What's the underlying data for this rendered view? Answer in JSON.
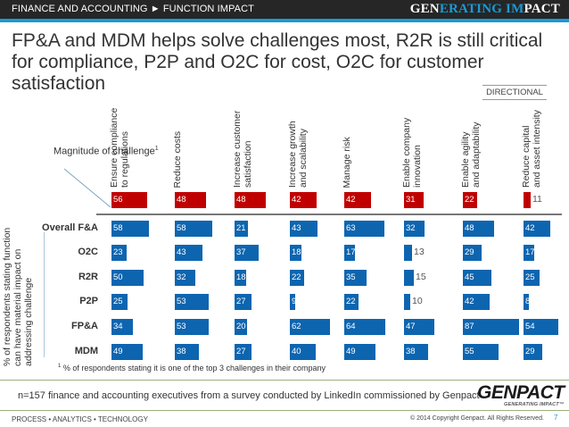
{
  "header": {
    "breadcrumb": "FINANCE AND ACCOUNTING ► FUNCTION IMPACT",
    "brand_part1": "GEN",
    "brand_part2": "ERATING IM",
    "brand_part3": "PACT"
  },
  "title": "FP&A and MDM helps solve challenges most, R2R is still critical for compliance, P2P and O2C for cost, O2C for customer satisfaction",
  "directional_label": "DIRECTIONAL",
  "magnitude_label": "Magnitude of challenge",
  "magnitude_sup": "1",
  "ylabel": "% of respondents stating function can have material impact on addressing challenge",
  "footnote_sup": "1",
  "footnote": "% of respondents stating it is one of the top 3 challenges in their company",
  "sample_note": "n=157 finance and accounting executives from a survey conducted by LinkedIn commissioned by Genpact",
  "footer": {
    "logo": "GENPACT",
    "logo_sub": "GENERATING IMPACT™",
    "tagline": "PROCESS • ANALYTICS • TECHNOLOGY",
    "copyright": "© 2014 Copyright Genpact. All Rights Reserved.",
    "page": "7"
  },
  "colors": {
    "magnitude": "#c00000",
    "impact": "#0d65b0",
    "accent": "#1a9ad6"
  },
  "chart_data": {
    "type": "table",
    "title": "FP&A and MDM helps solve challenges most, R2R is still critical for compliance, P2P and O2C for cost, O2C for customer satisfaction",
    "categories": [
      "Ensure compliance to regulations",
      "Reduce costs",
      "Increase customer satisfaction",
      "Increase growth and scalability",
      "Manage risk",
      "Enable company innovation",
      "Enable agility and adaptability",
      "Reduce capital and asset intensity"
    ],
    "categories_display": [
      [
        "Ensure compliance",
        "to regulations"
      ],
      [
        "Reduce costs"
      ],
      [
        "Increase customer",
        "satisfaction"
      ],
      [
        "Increase growth",
        "and scalability"
      ],
      [
        "Manage risk"
      ],
      [
        "Enable company",
        "innovation"
      ],
      [
        "Enable agility",
        "and adaptability"
      ],
      [
        "Reduce capital",
        "and asset intensity"
      ]
    ],
    "magnitude": {
      "name": "Magnitude of challenge",
      "values": [
        56,
        48,
        48,
        42,
        42,
        31,
        22,
        11
      ]
    },
    "series": [
      {
        "name": "Overall F&A",
        "values": [
          58,
          58,
          21,
          43,
          63,
          32,
          48,
          42
        ]
      },
      {
        "name": "O2C",
        "values": [
          23,
          43,
          37,
          18,
          17,
          13,
          29,
          17
        ]
      },
      {
        "name": "R2R",
        "values": [
          50,
          32,
          18,
          22,
          35,
          15,
          45,
          25
        ]
      },
      {
        "name": "P2P",
        "values": [
          25,
          53,
          27,
          9,
          22,
          10,
          42,
          8
        ]
      },
      {
        "name": "FP&A",
        "values": [
          34,
          53,
          20,
          62,
          64,
          47,
          87,
          54
        ]
      },
      {
        "name": "MDM",
        "values": [
          49,
          38,
          27,
          40,
          49,
          38,
          55,
          29
        ]
      }
    ],
    "unit": "% of respondents",
    "xlabel": "",
    "ylabel": "% of respondents stating function can have material impact on addressing challenge",
    "value_range": [
      0,
      100
    ]
  }
}
